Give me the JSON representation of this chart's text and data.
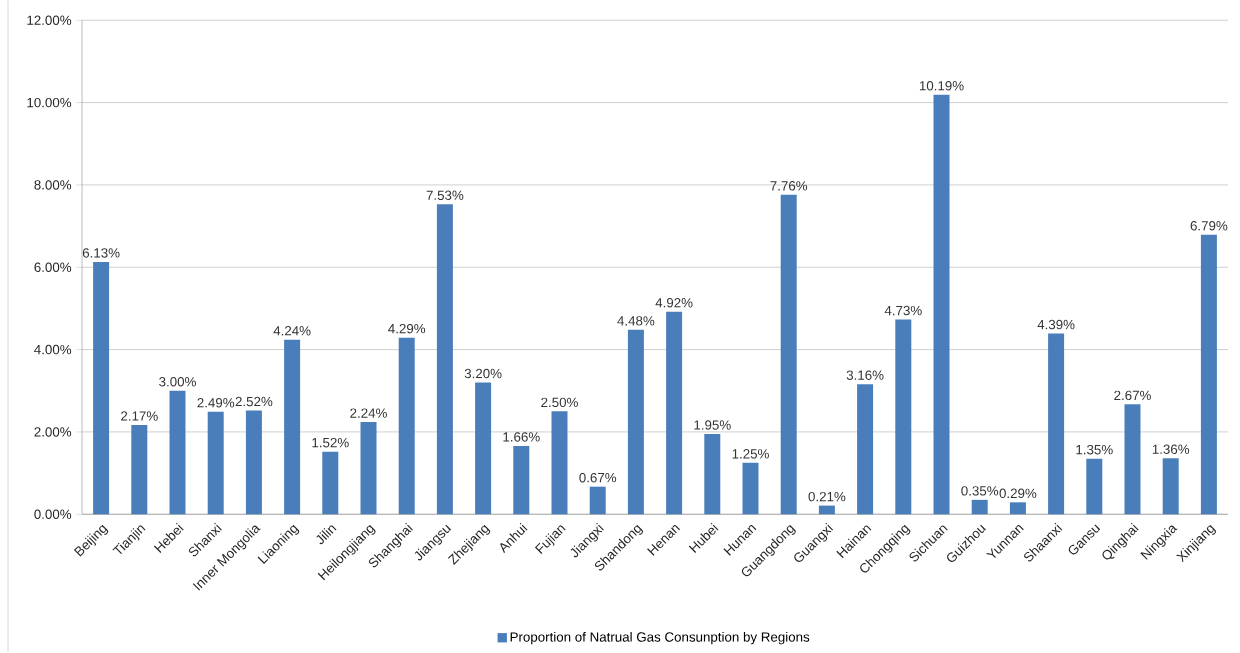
{
  "chart_data": {
    "type": "bar",
    "categories": [
      "Beijing",
      "Tianjin",
      "Hebei",
      "Shanxi",
      "Inner Mongolia",
      "Liaoning",
      "Jilin",
      "Heilongjiang",
      "Shanghai",
      "Jiangsu",
      "Zhejiang",
      "Anhui",
      "Fujian",
      "Jiangxi",
      "Shandong",
      "Henan",
      "Hubei",
      "Hunan",
      "Guangdong",
      "Guangxi",
      "Hainan",
      "Chongqing",
      "Sichuan",
      "Guizhou",
      "Yunnan",
      "Shaanxi",
      "Gansu",
      "Qinghai",
      "Ningxia",
      "Xinjiang"
    ],
    "series": [
      {
        "name": "Proportion of Natrual Gas Consunption by Regions",
        "color": "#4a7ebb",
        "values": [
          6.13,
          2.17,
          3.0,
          2.49,
          2.52,
          4.24,
          1.52,
          2.24,
          4.29,
          7.53,
          3.2,
          1.66,
          2.5,
          0.67,
          4.48,
          4.92,
          1.95,
          1.25,
          7.76,
          0.21,
          3.16,
          4.73,
          10.19,
          0.35,
          0.29,
          4.39,
          1.35,
          2.67,
          1.36,
          6.79
        ],
        "value_labels": [
          "6.13%",
          "2.17%",
          "3.00%",
          "2.49%",
          "2.52%",
          "4.24%",
          "1.52%",
          "2.24%",
          "4.29%",
          "7.53%",
          "3.20%",
          "1.66%",
          "2.50%",
          "0.67%",
          "4.48%",
          "4.92%",
          "1.95%",
          "1.25%",
          "7.76%",
          "0.21%",
          "3.16%",
          "4.73%",
          "10.19%",
          "0.35%",
          "0.29%",
          "4.39%",
          "1.35%",
          "2.67%",
          "1.36%",
          "6.79%"
        ]
      }
    ],
    "ylim": [
      0,
      12
    ],
    "yticks": [
      {
        "value": 0,
        "label": "0.00%"
      },
      {
        "value": 2,
        "label": "2.00%"
      },
      {
        "value": 4,
        "label": "4.00%"
      },
      {
        "value": 6,
        "label": "6.00%"
      },
      {
        "value": 8,
        "label": "8.00%"
      },
      {
        "value": 10,
        "label": "10.00%"
      },
      {
        "value": 12,
        "label": "12.00%"
      }
    ],
    "grid": "y",
    "legend": "bottom"
  }
}
